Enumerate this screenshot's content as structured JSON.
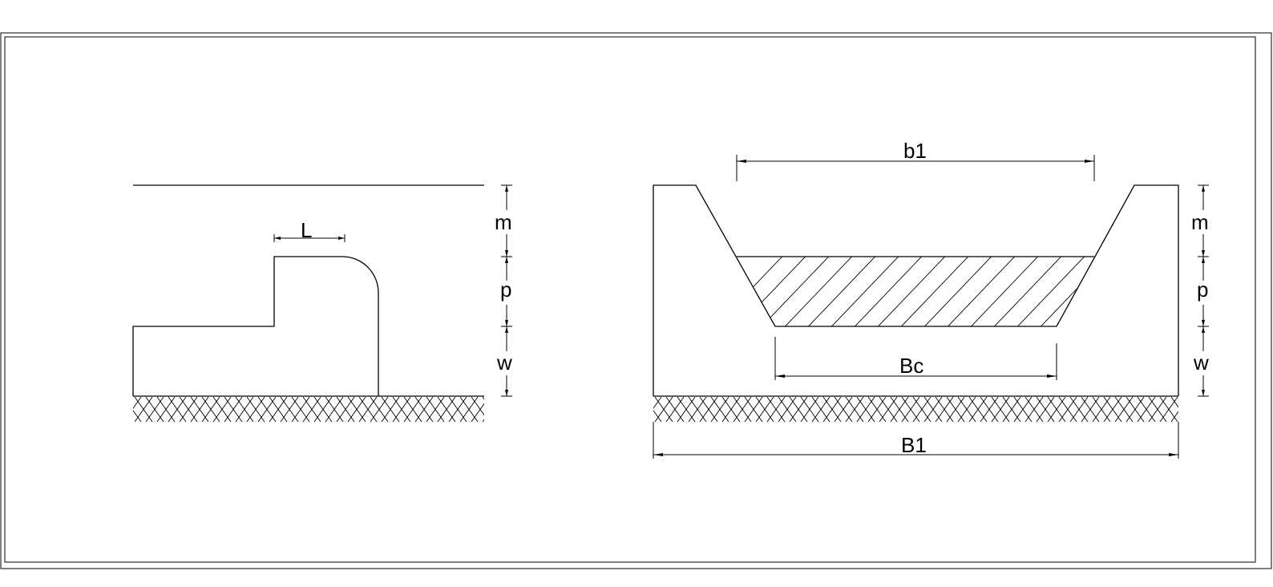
{
  "labels": {
    "weir_side": {
      "m": "m",
      "p": "p",
      "w": "w",
      "L": "L"
    },
    "channel_section": {
      "b1": "b1",
      "m": "m",
      "p": "p",
      "w": "w",
      "Bc": "Bc",
      "B1": "B1"
    }
  },
  "colors": {
    "line": "#000000",
    "background": "#ffffff"
  }
}
